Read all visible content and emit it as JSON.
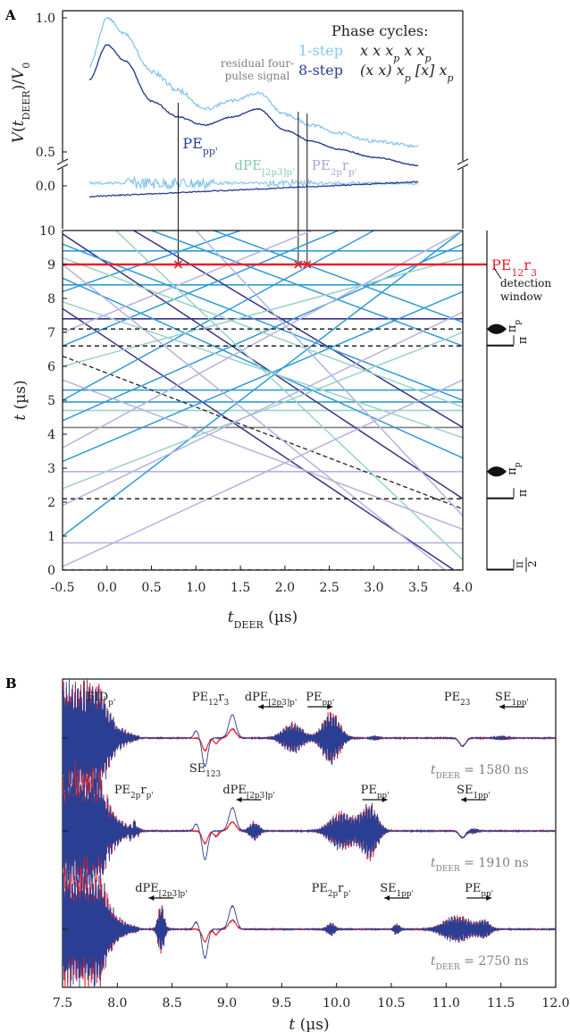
{
  "figure": {
    "panel_a_label": "A",
    "panel_b_label": "B"
  },
  "chart_data": [
    {
      "type": "line",
      "panel": "A-top",
      "ylabel": "V(t_DEER)/V_0",
      "ylabel_parts": {
        "v": "V(",
        "t": "t",
        "sub": "DEER",
        "close": ")/",
        "v0": "V",
        "zero": "0"
      },
      "yticks": [
        "1.0",
        "0.5",
        "0.0"
      ],
      "phase_cycles": {
        "title": "Phase cycles:",
        "rows": [
          {
            "name": "1-step",
            "cycle": "x  x  x",
            "cycle_sub": "p",
            "cycle2": "  x  x",
            "cycle2_sub": "p",
            "color": "#86c6ec"
          },
          {
            "name": "8-step",
            "cycle": "(x  x) x",
            "cycle_sub": "p",
            "cycle2": " [x] x",
            "cycle2_sub": "p",
            "color": "#2a3f93"
          }
        ]
      },
      "annotation_residual": [
        "residual four-",
        "pulse signal"
      ],
      "pathway_labels": [
        {
          "main": "PE",
          "sub": "pp'",
          "color": "#2a3f93"
        },
        {
          "main": "dPE",
          "sub": "[2p3]p'",
          "color": "#86c8b8"
        },
        {
          "main": "PE",
          "sub": "2p",
          "main2": "r",
          "sub2": "p'",
          "color": "#a9a6d8"
        }
      ],
      "series": [
        {
          "name": "1-step",
          "color": "#86c6ec",
          "x": [
            -0.2,
            0.0,
            0.2,
            0.5,
            0.8,
            1.1,
            1.4,
            1.7,
            2.0,
            2.3,
            2.6,
            3.0,
            3.5
          ],
          "y": [
            0.82,
            1.0,
            0.94,
            0.8,
            0.73,
            0.66,
            0.69,
            0.72,
            0.64,
            0.6,
            0.57,
            0.54,
            0.52
          ]
        },
        {
          "name": "8-step",
          "color": "#2a3f93",
          "x": [
            -0.2,
            0.0,
            0.2,
            0.5,
            0.8,
            1.1,
            1.4,
            1.7,
            2.0,
            2.3,
            2.6,
            3.0,
            3.5
          ],
          "y": [
            0.77,
            0.9,
            0.84,
            0.69,
            0.63,
            0.6,
            0.63,
            0.66,
            0.58,
            0.54,
            0.51,
            0.48,
            0.45
          ]
        }
      ]
    },
    {
      "type": "line",
      "panel": "A-bottom",
      "xlabel": "t_DEER (µs)",
      "xlabel_parts": {
        "t": "t",
        "sub": "DEER",
        "unit": " (µs)"
      },
      "ylabel": "t (µs)",
      "ylabel_parts": {
        "t": "t",
        "unit": " (µs)"
      },
      "xlim": [
        -0.5,
        4.0
      ],
      "ylim": [
        0,
        10
      ],
      "xticks": [
        "-0.5",
        "0.0",
        "0.5",
        "1.0",
        "1.5",
        "2.0",
        "2.5",
        "3.0",
        "3.5",
        "4.0"
      ],
      "yticks": [
        "0",
        "1",
        "2",
        "3",
        "4",
        "5",
        "6",
        "7",
        "8",
        "9",
        "10"
      ],
      "detection": {
        "label_main": "PE",
        "label_sub": "12",
        "label_main2": "r",
        "label_sub2": "3",
        "y": 9.0,
        "window_label": [
          "detection",
          "window"
        ],
        "color": "#e8202a"
      },
      "crossings": [
        0.8,
        2.15,
        2.25
      ],
      "pulse_positions": [
        {
          "y": 0.0,
          "label": "π/2",
          "num": "π",
          "den": "2",
          "type": "pi"
        },
        {
          "y": 2.1,
          "label": "π",
          "type": "pi"
        },
        {
          "y": 2.9,
          "label": "π_p",
          "type": "pump"
        },
        {
          "y": 6.6,
          "label": "π",
          "type": "pi"
        },
        {
          "y": 7.1,
          "label": "π_p",
          "type": "pump"
        }
      ],
      "horizontal_lines": [
        {
          "y": 0.8,
          "color": "#b6b2e0"
        },
        {
          "y": 2.9,
          "color": "#b6b2e0"
        },
        {
          "y": 4.2,
          "color": "#808080"
        },
        {
          "y": 4.7,
          "color": "#99d3c7"
        },
        {
          "y": 4.95,
          "color": "#2e9bd6"
        },
        {
          "y": 5.3,
          "color": "#2e9bd6"
        },
        {
          "y": 7.4,
          "color": "#3b3285"
        },
        {
          "y": 8.4,
          "color": "#2e9bd6"
        },
        {
          "y": 9.4,
          "color": "#2e9bd6"
        }
      ],
      "dashed_lines": [
        0.0,
        2.1,
        6.6,
        7.1
      ],
      "diagonal_lines": [
        {
          "x0": -0.5,
          "y0": 7.7,
          "x1": 3.9,
          "y1": 0.0,
          "color": "#3b3285"
        },
        {
          "x0": -0.5,
          "y0": 9.9,
          "x1": 4.0,
          "y1": 2.1,
          "color": "#3b3285"
        },
        {
          "x0": 0.3,
          "y0": 10.0,
          "x1": 4.0,
          "y1": 4.2,
          "color": "#3b3285"
        },
        {
          "x0": -0.5,
          "y0": 6.3,
          "x1": 4.0,
          "y1": 1.8,
          "color": "#222222",
          "dashed": true
        },
        {
          "x0": -0.5,
          "y0": 1.0,
          "x1": 4.0,
          "y1": 10.0,
          "color": "#2e9bd6"
        },
        {
          "x0": -0.5,
          "y0": 3.2,
          "x1": 4.0,
          "y1": 8.2,
          "color": "#2e9bd6"
        },
        {
          "x0": -0.5,
          "y0": 5.0,
          "x1": 3.0,
          "y1": 10.0,
          "color": "#2e9bd6"
        },
        {
          "x0": -0.5,
          "y0": 8.6,
          "x1": 4.0,
          "y1": 3.3,
          "color": "#2e9bd6"
        },
        {
          "x0": -0.5,
          "y0": 9.6,
          "x1": 4.0,
          "y1": 5.0,
          "color": "#2e9bd6"
        },
        {
          "x0": 0.5,
          "y0": 10.0,
          "x1": 4.0,
          "y1": 6.6,
          "color": "#2e9bd6"
        },
        {
          "x0": -0.5,
          "y0": 4.4,
          "x1": 4.0,
          "y1": 9.6,
          "color": "#2e9bd6"
        },
        {
          "x0": -0.5,
          "y0": 6.6,
          "x1": 2.6,
          "y1": 10.0,
          "color": "#2e9bd6"
        },
        {
          "x0": -0.5,
          "y0": 8.2,
          "x1": 1.5,
          "y1": 10.0,
          "color": "#2e9bd6"
        },
        {
          "x0": 1.2,
          "y0": 10.0,
          "x1": 4.0,
          "y1": 7.3,
          "color": "#2e9bd6"
        },
        {
          "x0": -0.5,
          "y0": 6.0,
          "x1": 4.0,
          "y1": 9.2,
          "color": "#99d3c7"
        },
        {
          "x0": -0.5,
          "y0": 7.9,
          "x1": 4.0,
          "y1": 3.9,
          "color": "#99d3c7"
        },
        {
          "x0": -0.5,
          "y0": 9.2,
          "x1": 4.0,
          "y1": 4.8,
          "color": "#99d3c7"
        },
        {
          "x0": -0.5,
          "y0": 2.4,
          "x1": 4.0,
          "y1": 7.0,
          "color": "#99d3c7"
        },
        {
          "x0": 0.1,
          "y0": 10.0,
          "x1": 4.0,
          "y1": 0.3,
          "color": "#99d3c7"
        },
        {
          "x0": -0.5,
          "y0": 0.1,
          "x1": 4.0,
          "y1": 5.6,
          "color": "#b6b2e0"
        },
        {
          "x0": -0.5,
          "y0": 1.9,
          "x1": 4.0,
          "y1": 7.6,
          "color": "#b6b2e0"
        },
        {
          "x0": -0.5,
          "y0": 5.6,
          "x1": 4.0,
          "y1": 1.2,
          "color": "#b6b2e0"
        },
        {
          "x0": -0.5,
          "y0": 9.0,
          "x1": 3.8,
          "y1": 0.0,
          "color": "#b6b2e0"
        },
        {
          "x0": 1.0,
          "y0": 10.0,
          "x1": 4.0,
          "y1": 1.6,
          "color": "#b6b2e0"
        },
        {
          "x0": -0.5,
          "y0": 3.6,
          "x1": 4.0,
          "y1": 10.0,
          "color": "#b6b2e0"
        },
        {
          "x0": -0.5,
          "y0": 7.0,
          "x1": 2.3,
          "y1": 10.0,
          "color": "#b6b2e0"
        }
      ]
    },
    {
      "type": "line",
      "panel": "B",
      "xlabel": "t (µs)",
      "xlabel_parts": {
        "t": "t",
        "unit": " (µs)"
      },
      "xlim": [
        7.5,
        12.0
      ],
      "xticks": [
        "7.5",
        "8.0",
        "8.5",
        "9.0",
        "9.5",
        "10.0",
        "10.5",
        "11.0",
        "11.5",
        "12.0"
      ],
      "series_colors": {
        "1-step": "#e8202a",
        "8-step": "#2a3f93"
      },
      "traces": [
        {
          "tdeer_label": {
            "t": "t",
            "sub": "DEER",
            "value": " = 1580 ns"
          },
          "tdeer_ns": 1580,
          "labels": [
            {
              "main": "FID",
              "sub": "p'",
              "x": 7.85,
              "pos": "above"
            },
            {
              "main": "PE",
              "sub": "12",
              "main2": "r",
              "sub2": "3",
              "x": 8.85,
              "pos": "above"
            },
            {
              "main": "SE",
              "sub": "123",
              "x": 8.8,
              "pos": "below"
            },
            {
              "main": "dPE",
              "sub": "[2p3]p'",
              "x": 9.4,
              "pos": "above",
              "arrow": "left"
            },
            {
              "main": "PE",
              "sub": "pp'",
              "x": 9.85,
              "pos": "above",
              "arrow": "right"
            },
            {
              "main": "PE",
              "sub": "23",
              "x": 11.1,
              "pos": "above"
            },
            {
              "main": "SE",
              "sub": "1pp'",
              "x": 11.6,
              "pos": "above",
              "arrow": "left"
            }
          ],
          "packets": [
            {
              "x": 9.6,
              "amp": 0.55,
              "w": 0.25
            },
            {
              "x": 9.95,
              "amp": 0.95,
              "w": 0.22
            },
            {
              "x": 10.35,
              "amp": 0.1,
              "w": 0.1
            },
            {
              "x": 11.5,
              "amp": 0.08,
              "w": 0.15
            }
          ],
          "dips": [
            {
              "x": 11.15,
              "amp": -0.3
            }
          ]
        },
        {
          "tdeer_label": {
            "t": "t",
            "sub": "DEER",
            "value": " = 1910 ns"
          },
          "tdeer_ns": 1910,
          "labels": [
            {
              "main": "PE",
              "sub": "2p",
              "main2": "r",
              "sub2": "p'",
              "x": 8.15,
              "pos": "above"
            },
            {
              "main": "dPE",
              "sub": "[2p3]p'",
              "x": 9.2,
              "pos": "above",
              "arrow": "left"
            },
            {
              "main": "PE",
              "sub": "pp'",
              "x": 10.35,
              "pos": "above",
              "arrow": "right"
            },
            {
              "main": "SE",
              "sub": "1pp'",
              "x": 11.25,
              "pos": "above",
              "arrow": "left"
            }
          ],
          "packets": [
            {
              "x": 8.15,
              "amp": 0.3,
              "w": 0.1
            },
            {
              "x": 9.25,
              "amp": 0.35,
              "w": 0.12
            },
            {
              "x": 10.05,
              "amp": 0.7,
              "w": 0.3
            },
            {
              "x": 10.3,
              "amp": 1.0,
              "w": 0.2
            },
            {
              "x": 11.25,
              "amp": 0.1,
              "w": 0.1
            }
          ],
          "dips": [
            {
              "x": 11.15,
              "amp": -0.25
            }
          ]
        },
        {
          "tdeer_label": {
            "t": "t",
            "sub": "DEER",
            "value": " = 2750 ns"
          },
          "tdeer_ns": 2750,
          "labels": [
            {
              "main": "dPE",
              "sub": "[2p3]p'",
              "x": 8.4,
              "pos": "above",
              "arrow": "left"
            },
            {
              "main": "PE",
              "sub": "2p",
              "main2": "r",
              "sub2": "p'",
              "x": 9.95,
              "pos": "above"
            },
            {
              "main": "SE",
              "sub": "1pp'",
              "x": 10.55,
              "pos": "above",
              "arrow": "left"
            },
            {
              "main": "PE",
              "sub": "pp'",
              "x": 11.3,
              "pos": "above",
              "arrow": "right"
            }
          ],
          "packets": [
            {
              "x": 8.4,
              "amp": 0.9,
              "w": 0.08
            },
            {
              "x": 9.95,
              "amp": 0.25,
              "w": 0.1
            },
            {
              "x": 10.55,
              "amp": 0.2,
              "w": 0.08
            },
            {
              "x": 11.1,
              "amp": 0.5,
              "w": 0.35
            },
            {
              "x": 11.35,
              "amp": 0.3,
              "w": 0.15
            }
          ],
          "dips": []
        }
      ]
    }
  ]
}
